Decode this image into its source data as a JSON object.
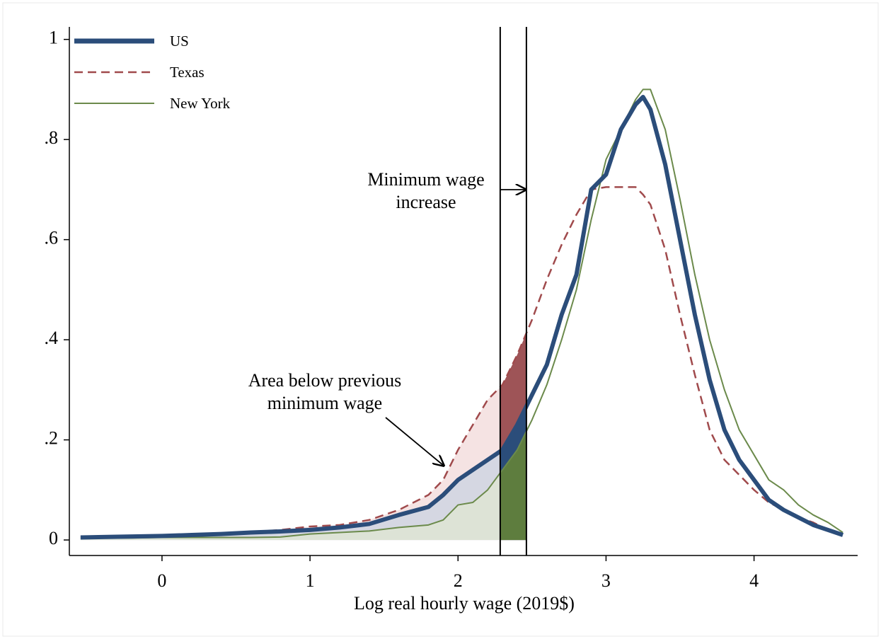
{
  "chart_data": {
    "type": "line",
    "x_label": "Log real hourly wage (2019$)",
    "x": [
      -0.55,
      -0.4,
      -0.2,
      0,
      0.2,
      0.4,
      0.6,
      0.8,
      1.0,
      1.2,
      1.4,
      1.6,
      1.8,
      1.9,
      2.0,
      2.1,
      2.2,
      2.3,
      2.4,
      2.5,
      2.6,
      2.7,
      2.8,
      2.9,
      3.0,
      3.1,
      3.2,
      3.25,
      3.3,
      3.4,
      3.5,
      3.6,
      3.7,
      3.8,
      3.9,
      4.0,
      4.1,
      4.2,
      4.3,
      4.4,
      4.5,
      4.6
    ],
    "series": [
      {
        "name": "US",
        "color": "#2b4d7a",
        "shade": "#c9d3e2",
        "dark_shade": "#2b4d7a",
        "values": [
          0.005,
          0.006,
          0.007,
          0.008,
          0.01,
          0.012,
          0.015,
          0.017,
          0.02,
          0.025,
          0.032,
          0.05,
          0.066,
          0.09,
          0.12,
          0.14,
          0.16,
          0.18,
          0.23,
          0.29,
          0.35,
          0.45,
          0.53,
          0.7,
          0.73,
          0.82,
          0.87,
          0.885,
          0.86,
          0.75,
          0.6,
          0.45,
          0.32,
          0.22,
          0.16,
          0.12,
          0.08,
          0.06,
          0.045,
          0.03,
          0.02,
          0.01
        ]
      },
      {
        "name": "Texas",
        "color": "#a04a4c",
        "shade": "#f1d9da",
        "dark_shade": "#9e5457",
        "values": [
          0.006,
          0.007,
          0.007,
          0.008,
          0.01,
          0.013,
          0.016,
          0.02,
          0.027,
          0.03,
          0.04,
          0.06,
          0.09,
          0.12,
          0.18,
          0.23,
          0.28,
          0.31,
          0.37,
          0.44,
          0.52,
          0.59,
          0.65,
          0.7,
          0.705,
          0.705,
          0.705,
          0.69,
          0.67,
          0.58,
          0.45,
          0.33,
          0.22,
          0.16,
          0.13,
          0.1,
          0.075,
          0.06,
          0.045,
          0.035,
          0.02,
          0.008
        ]
      },
      {
        "name": "New York",
        "color": "#6b8a4b",
        "shade": "#dfe7d2",
        "dark_shade": "#5e7d3e",
        "values": [
          0.003,
          0.004,
          0.004,
          0.005,
          0.005,
          0.005,
          0.005,
          0.006,
          0.012,
          0.015,
          0.018,
          0.025,
          0.03,
          0.04,
          0.07,
          0.075,
          0.1,
          0.14,
          0.18,
          0.24,
          0.31,
          0.4,
          0.5,
          0.64,
          0.76,
          0.82,
          0.88,
          0.9,
          0.9,
          0.82,
          0.68,
          0.53,
          0.4,
          0.3,
          0.22,
          0.17,
          0.12,
          0.1,
          0.07,
          0.05,
          0.035,
          0.015
        ]
      }
    ],
    "vlines": [
      2.285,
      2.462
    ],
    "annotations": [
      "Minimum wage",
      "increase",
      "Area below previous",
      "minimum wage"
    ],
    "xlim": [
      -0.626,
      4.7
    ],
    "ylim": [
      -0.031,
      1.025
    ],
    "xticks": [
      0,
      1,
      2,
      3,
      4
    ],
    "yticks": [
      0,
      {
        "value": 0.2,
        "label": ".2"
      },
      {
        "value": 0.4,
        "label": ".4"
      },
      {
        "value": 0.6,
        "label": ".6"
      },
      {
        "value": 0.8,
        "label": ".8"
      },
      1
    ],
    "legend": "top-left"
  }
}
